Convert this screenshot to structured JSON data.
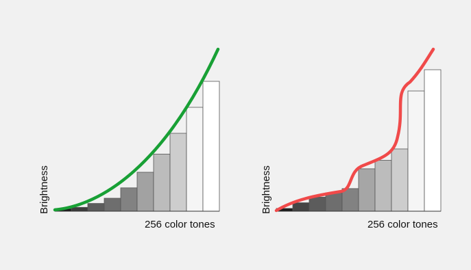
{
  "panels": [
    {
      "id": "left",
      "y_axis_label": "Brightness",
      "x_axis_label": "256 color tones",
      "curve_color": "#18a035",
      "curve_shape": "smooth-quadratic",
      "bars": [
        {
          "level": 0.02,
          "fill": "#1b1b1b"
        },
        {
          "level": 0.03,
          "fill": "#3d3d3d"
        },
        {
          "level": 0.06,
          "fill": "#5c5c5c"
        },
        {
          "level": 0.1,
          "fill": "#6e6e6e"
        },
        {
          "level": 0.18,
          "fill": "#828282"
        },
        {
          "level": 0.3,
          "fill": "#a2a2a2"
        },
        {
          "level": 0.44,
          "fill": "#bcbcbc"
        },
        {
          "level": 0.6,
          "fill": "#cdcdcd"
        },
        {
          "level": 0.8,
          "fill": "#f5f5f5",
          "top_fill": "#ffffff",
          "top_level": 0.8
        },
        {
          "level": 1.0,
          "fill": "#ffffff"
        }
      ]
    },
    {
      "id": "right",
      "y_axis_label": "Brightness",
      "x_axis_label": "256 color tones",
      "curve_color": "#f04a4a",
      "curve_shape": "s-curve",
      "bars": [
        {
          "level": 0.02,
          "fill": "#1b1b1b"
        },
        {
          "level": 0.06,
          "fill": "#454545"
        },
        {
          "level": 0.1,
          "fill": "#5c5c5c"
        },
        {
          "level": 0.13,
          "fill": "#6e6e6e"
        },
        {
          "level": 0.16,
          "fill": "#828282"
        },
        {
          "level": 0.3,
          "fill": "#a6a6a6"
        },
        {
          "level": 0.36,
          "fill": "#bcbcbc"
        },
        {
          "level": 0.44,
          "fill": "#cdcdcd"
        },
        {
          "level": 0.85,
          "fill": "#f5f5f5"
        },
        {
          "level": 1.0,
          "fill": "#ffffff"
        }
      ]
    }
  ]
}
